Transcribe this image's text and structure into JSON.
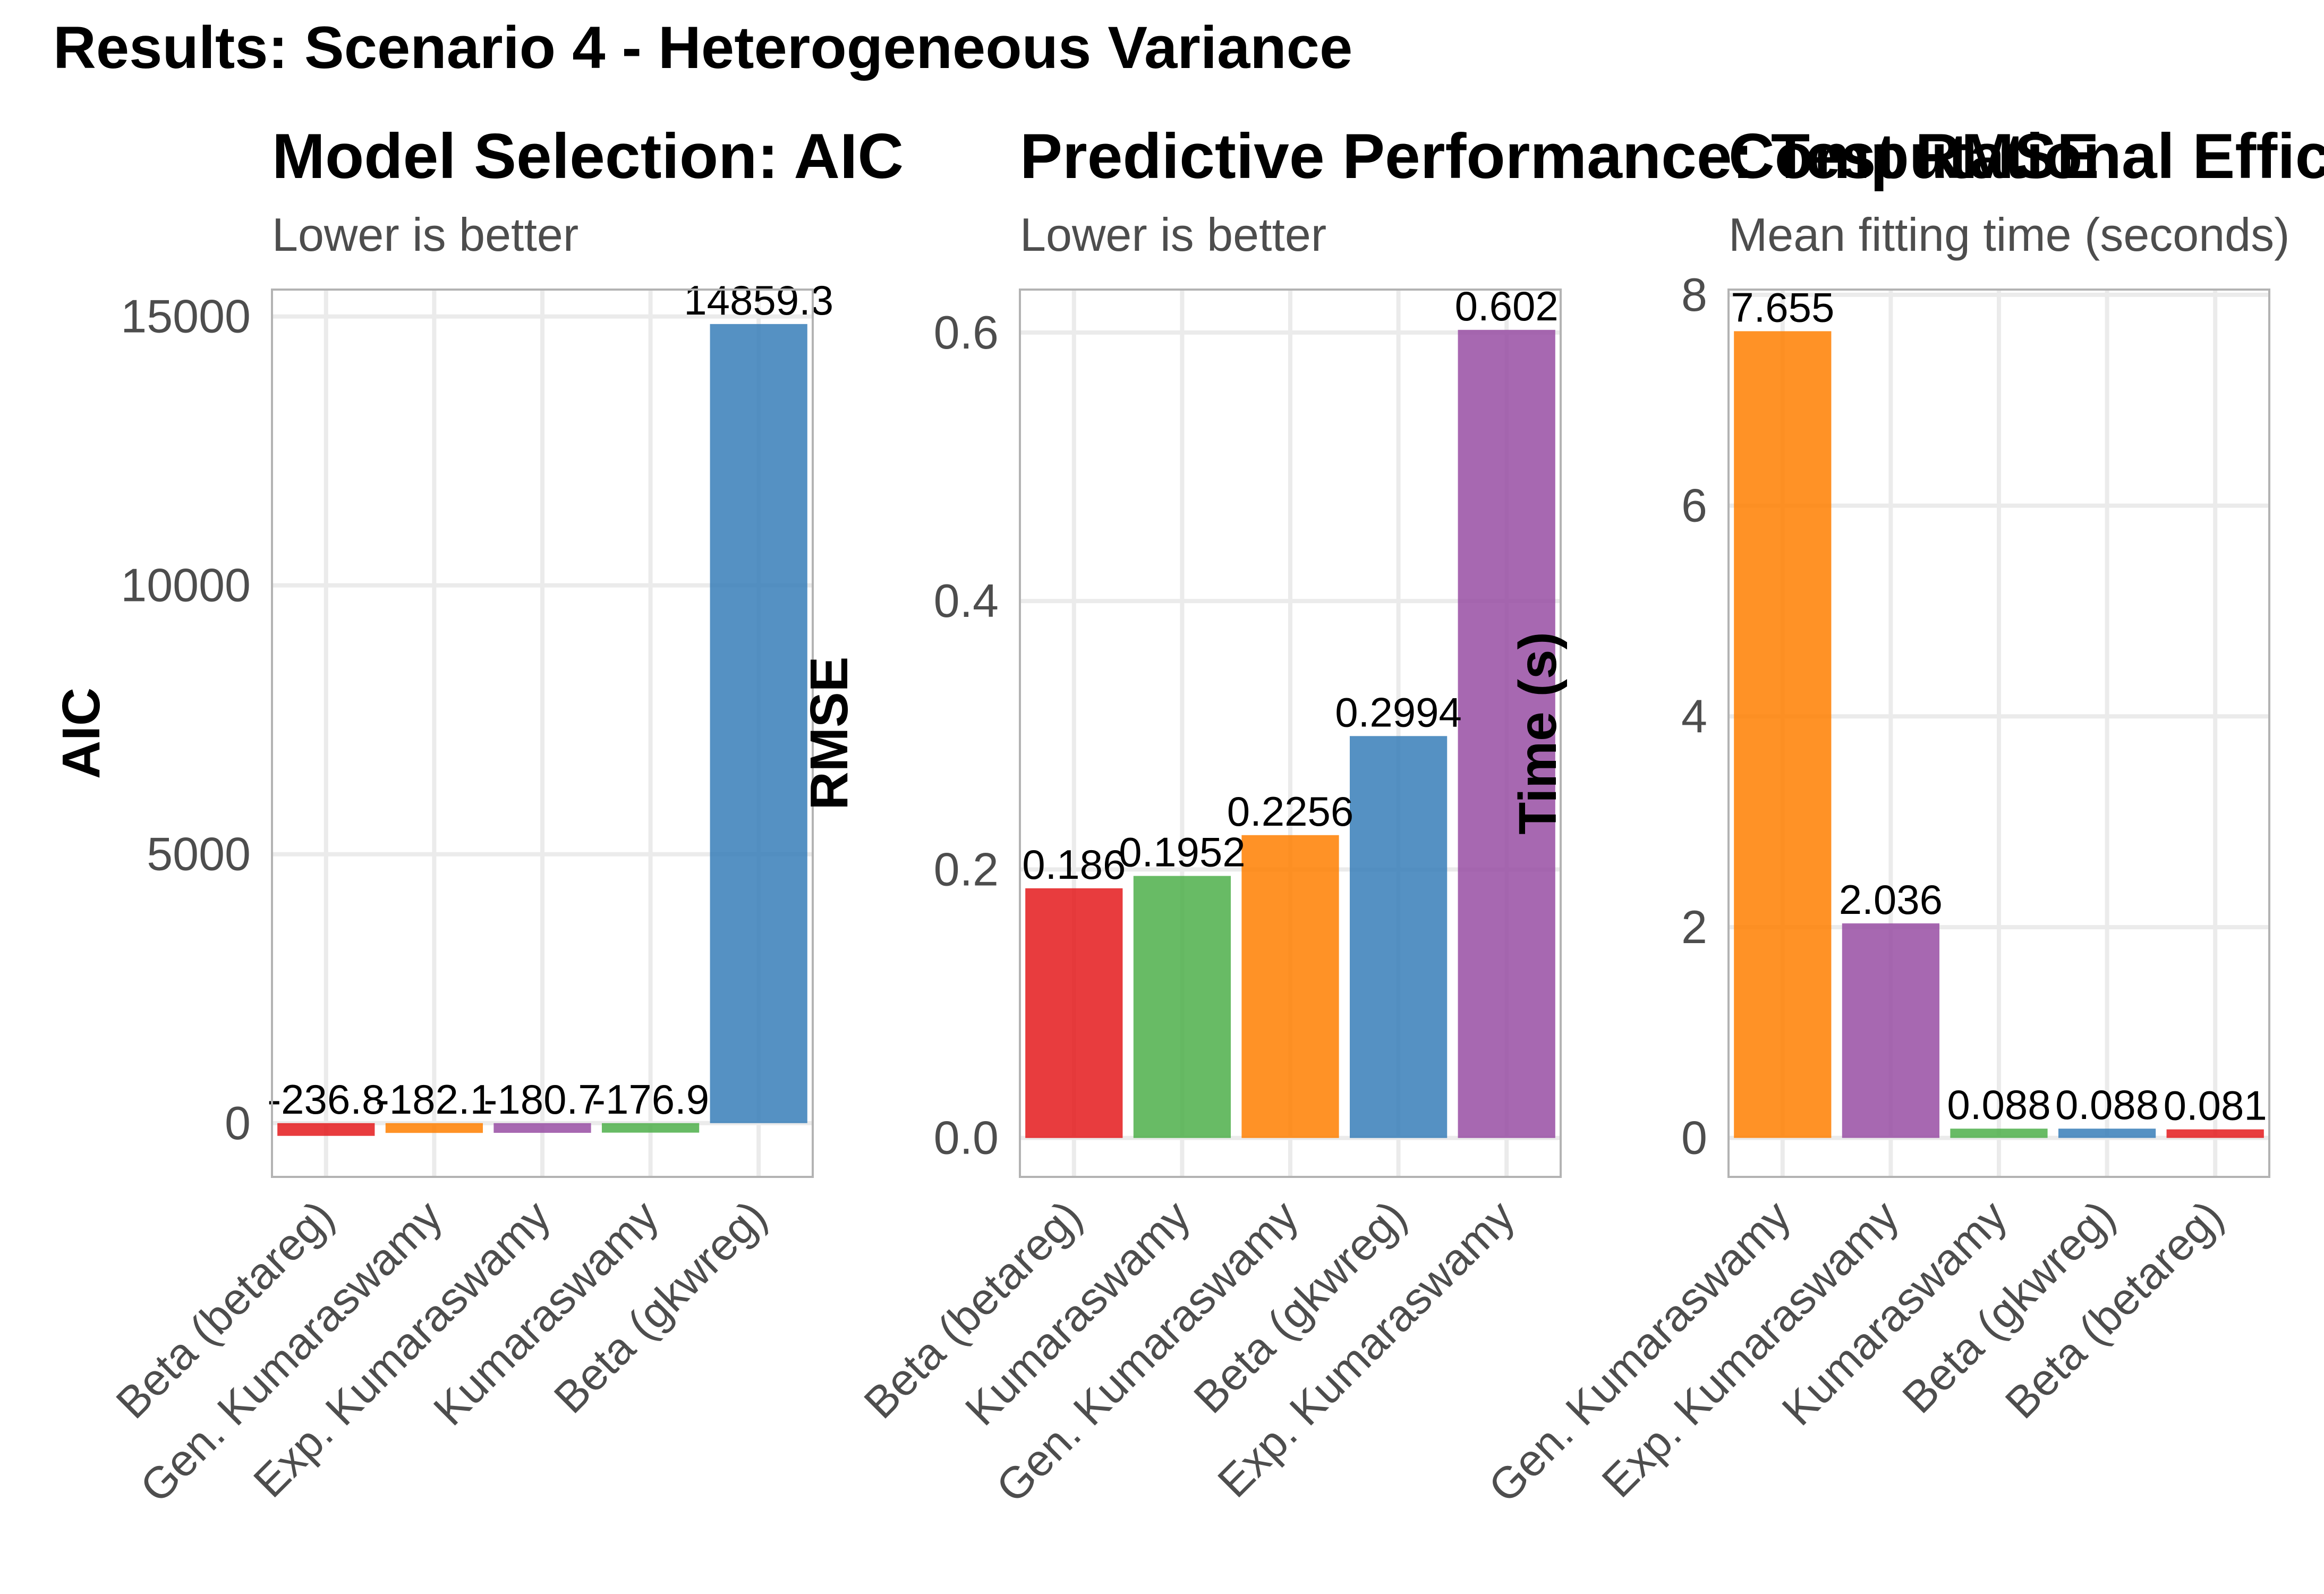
{
  "figure": {
    "title": "Results: Scenario 4 - Heterogeneous Variance"
  },
  "chart_data": [
    {
      "type": "bar",
      "title": "Model Selection: AIC",
      "subtitle": "Lower is better",
      "xlabel": "",
      "ylabel": "AIC",
      "categories": [
        "Beta (betareg)",
        "Gen. Kumaraswamy",
        "Exp. Kumaraswamy",
        "Kumaraswamy",
        "Beta (gkwreg)"
      ],
      "values": [
        -236.8,
        -182.1,
        -180.7,
        -176.9,
        14859.3
      ],
      "labels": [
        "-236.8",
        "-182.1",
        "-180.7",
        "-176.9",
        "14859.3"
      ],
      "colors": [
        "#e41a1c",
        "#ff7f00",
        "#984ea3",
        "#4daf4a",
        "#377eb8"
      ],
      "yticks": [
        0,
        5000,
        10000,
        15000
      ],
      "ytick_labels": [
        "0",
        "5000",
        "10000",
        "15000"
      ],
      "ylim": [
        -1000,
        15500
      ],
      "grid": true
    },
    {
      "type": "bar",
      "title": "Predictive Performance: Test RMSE",
      "subtitle": "Lower is better",
      "xlabel": "",
      "ylabel": "RMSE",
      "categories": [
        "Beta (betareg)",
        "Kumaraswamy",
        "Gen. Kumaraswamy",
        "Beta (gkwreg)",
        "Exp. Kumaraswamy"
      ],
      "values": [
        0.186,
        0.1952,
        0.2256,
        0.2994,
        0.602
      ],
      "labels": [
        "0.186",
        "0.1952",
        "0.2256",
        "0.2994",
        "0.602"
      ],
      "colors": [
        "#e41a1c",
        "#4daf4a",
        "#ff7f00",
        "#377eb8",
        "#984ea3"
      ],
      "yticks": [
        0,
        0.2,
        0.4,
        0.6
      ],
      "ytick_labels": [
        "0.0",
        "0.2",
        "0.4",
        "0.6"
      ],
      "ylim": [
        -0.029,
        0.632
      ],
      "grid": true
    },
    {
      "type": "bar",
      "title": "Computational Efficiency",
      "subtitle": "Mean fitting time (seconds)",
      "xlabel": "",
      "ylabel": "Time (s)",
      "categories": [
        "Gen. Kumaraswamy",
        "Exp. Kumaraswamy",
        "Kumaraswamy",
        "Beta (gkwreg)",
        "Beta (betareg)"
      ],
      "values": [
        7.655,
        2.036,
        0.088,
        0.088,
        0.081
      ],
      "labels": [
        "7.655",
        "2.036",
        "0.088",
        "0.088",
        "0.081"
      ],
      "colors": [
        "#ff7f00",
        "#984ea3",
        "#4daf4a",
        "#377eb8",
        "#e41a1c"
      ],
      "yticks": [
        0,
        2,
        4,
        6,
        8
      ],
      "ytick_labels": [
        "0",
        "2",
        "4",
        "6",
        "8"
      ],
      "ylim": [
        -0.37,
        8.05
      ],
      "grid": true
    }
  ]
}
